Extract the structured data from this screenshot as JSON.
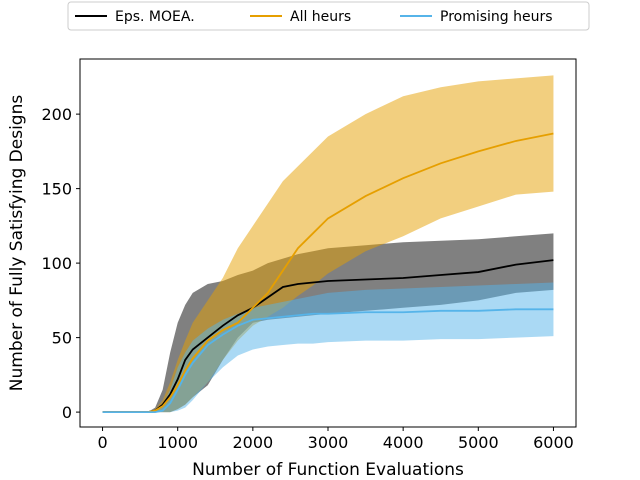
{
  "chart_data": {
    "type": "line",
    "xlabel": "Number of Function Evaluations",
    "ylabel": "Number of Fully Satisfying Designs",
    "xlim": [
      -300,
      6300
    ],
    "ylim": [
      -10,
      237
    ],
    "xticks": [
      0,
      1000,
      2000,
      3000,
      4000,
      5000,
      6000
    ],
    "yticks": [
      0,
      50,
      100,
      150,
      200
    ],
    "grid": false,
    "legend_position": "top-center",
    "series": [
      {
        "name": "Eps. MOEA.",
        "color": "#000000",
        "band_color": "#555555",
        "band_opacity": 0.75,
        "x": [
          0,
          600,
          700,
          800,
          900,
          1000,
          1100,
          1200,
          1400,
          1600,
          1800,
          2000,
          2200,
          2400,
          2600,
          2800,
          3000,
          3500,
          4000,
          4500,
          5000,
          5500,
          6000
        ],
        "y": [
          0,
          0,
          1,
          5,
          12,
          22,
          35,
          42,
          50,
          58,
          65,
          70,
          77,
          84,
          86,
          87,
          88,
          89,
          90,
          92,
          94,
          99,
          102
        ],
        "lower": [
          0,
          0,
          0,
          0,
          0,
          2,
          5,
          10,
          18,
          35,
          50,
          60,
          62,
          63,
          64,
          65,
          66,
          68,
          70,
          72,
          75,
          80,
          82
        ],
        "upper": [
          0,
          0,
          3,
          15,
          40,
          60,
          72,
          80,
          86,
          88,
          92,
          95,
          100,
          103,
          106,
          108,
          110,
          112,
          114,
          115,
          116,
          118,
          120
        ]
      },
      {
        "name": "All heurs",
        "color": "#e69f00",
        "band_color": "#e69f00",
        "band_opacity": 0.5,
        "x": [
          0,
          600,
          700,
          800,
          900,
          1000,
          1100,
          1200,
          1400,
          1600,
          1800,
          2000,
          2200,
          2400,
          2600,
          2800,
          3000,
          3500,
          4000,
          4500,
          5000,
          5500,
          6000
        ],
        "y": [
          0,
          0,
          1,
          4,
          10,
          18,
          28,
          36,
          48,
          55,
          60,
          70,
          80,
          95,
          110,
          120,
          130,
          145,
          157,
          167,
          175,
          182,
          187
        ],
        "lower": [
          0,
          0,
          0,
          0,
          0,
          2,
          5,
          10,
          20,
          35,
          48,
          58,
          64,
          70,
          78,
          85,
          93,
          108,
          118,
          130,
          138,
          146,
          148
        ],
        "upper": [
          0,
          0,
          2,
          8,
          20,
          35,
          48,
          60,
          75,
          90,
          110,
          125,
          140,
          155,
          165,
          175,
          185,
          200,
          212,
          218,
          222,
          224,
          226
        ]
      },
      {
        "name": "Promising heurs",
        "color": "#56b4e9",
        "band_color": "#56b4e9",
        "band_opacity": 0.5,
        "x": [
          0,
          600,
          700,
          800,
          900,
          1000,
          1100,
          1200,
          1400,
          1600,
          1800,
          2000,
          2200,
          2400,
          2600,
          2800,
          3000,
          3500,
          4000,
          4500,
          5000,
          5500,
          6000
        ],
        "y": [
          0,
          0,
          0,
          1,
          6,
          15,
          25,
          33,
          45,
          52,
          58,
          62,
          63,
          64,
          65,
          66,
          66,
          67,
          67,
          68,
          68,
          69,
          69
        ],
        "lower": [
          0,
          0,
          0,
          0,
          0,
          1,
          3,
          8,
          20,
          30,
          38,
          42,
          44,
          45,
          46,
          46,
          47,
          48,
          48,
          49,
          49,
          50,
          51
        ],
        "upper": [
          0,
          0,
          1,
          5,
          15,
          30,
          40,
          48,
          56,
          62,
          66,
          70,
          72,
          74,
          76,
          78,
          80,
          82,
          83,
          84,
          85,
          86,
          87
        ]
      }
    ]
  }
}
